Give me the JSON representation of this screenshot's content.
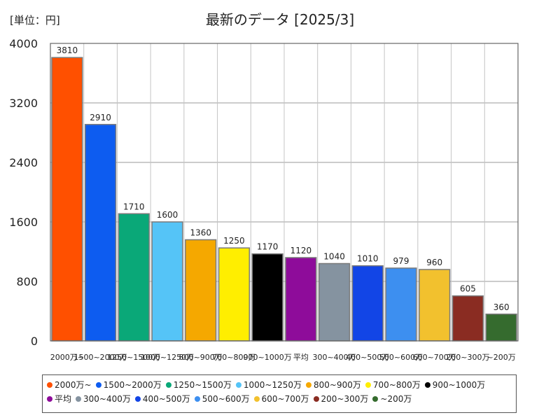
{
  "unit_label": "[単位：円]",
  "chart_data": {
    "type": "bar",
    "title": "最新のデータ [2025/3]",
    "categories": [
      "2000万~",
      "1500~2000万",
      "1250~1500万",
      "1000~1250万",
      "800~900万",
      "700~800万",
      "900~1000万",
      "平均",
      "300~400万",
      "400~500万",
      "500~600万",
      "600~700万",
      "200~300万",
      "~200万"
    ],
    "values": [
      3810,
      2910,
      1710,
      1600,
      1360,
      1250,
      1170,
      1120,
      1040,
      1010,
      979,
      960,
      605,
      360
    ],
    "colors": [
      "#ff5000",
      "#0d5cf0",
      "#0aa878",
      "#55c4f7",
      "#f5a800",
      "#ffee00",
      "#000000",
      "#8e0c9a",
      "#8593a0",
      "#1245e6",
      "#3d8ff0",
      "#f2c12e",
      "#8a2c22",
      "#356b2e"
    ],
    "ylim": [
      0,
      4000
    ],
    "yticks": [
      0,
      800,
      1600,
      2400,
      3200,
      4000
    ],
    "grid": true,
    "legend_position": "bottom"
  }
}
